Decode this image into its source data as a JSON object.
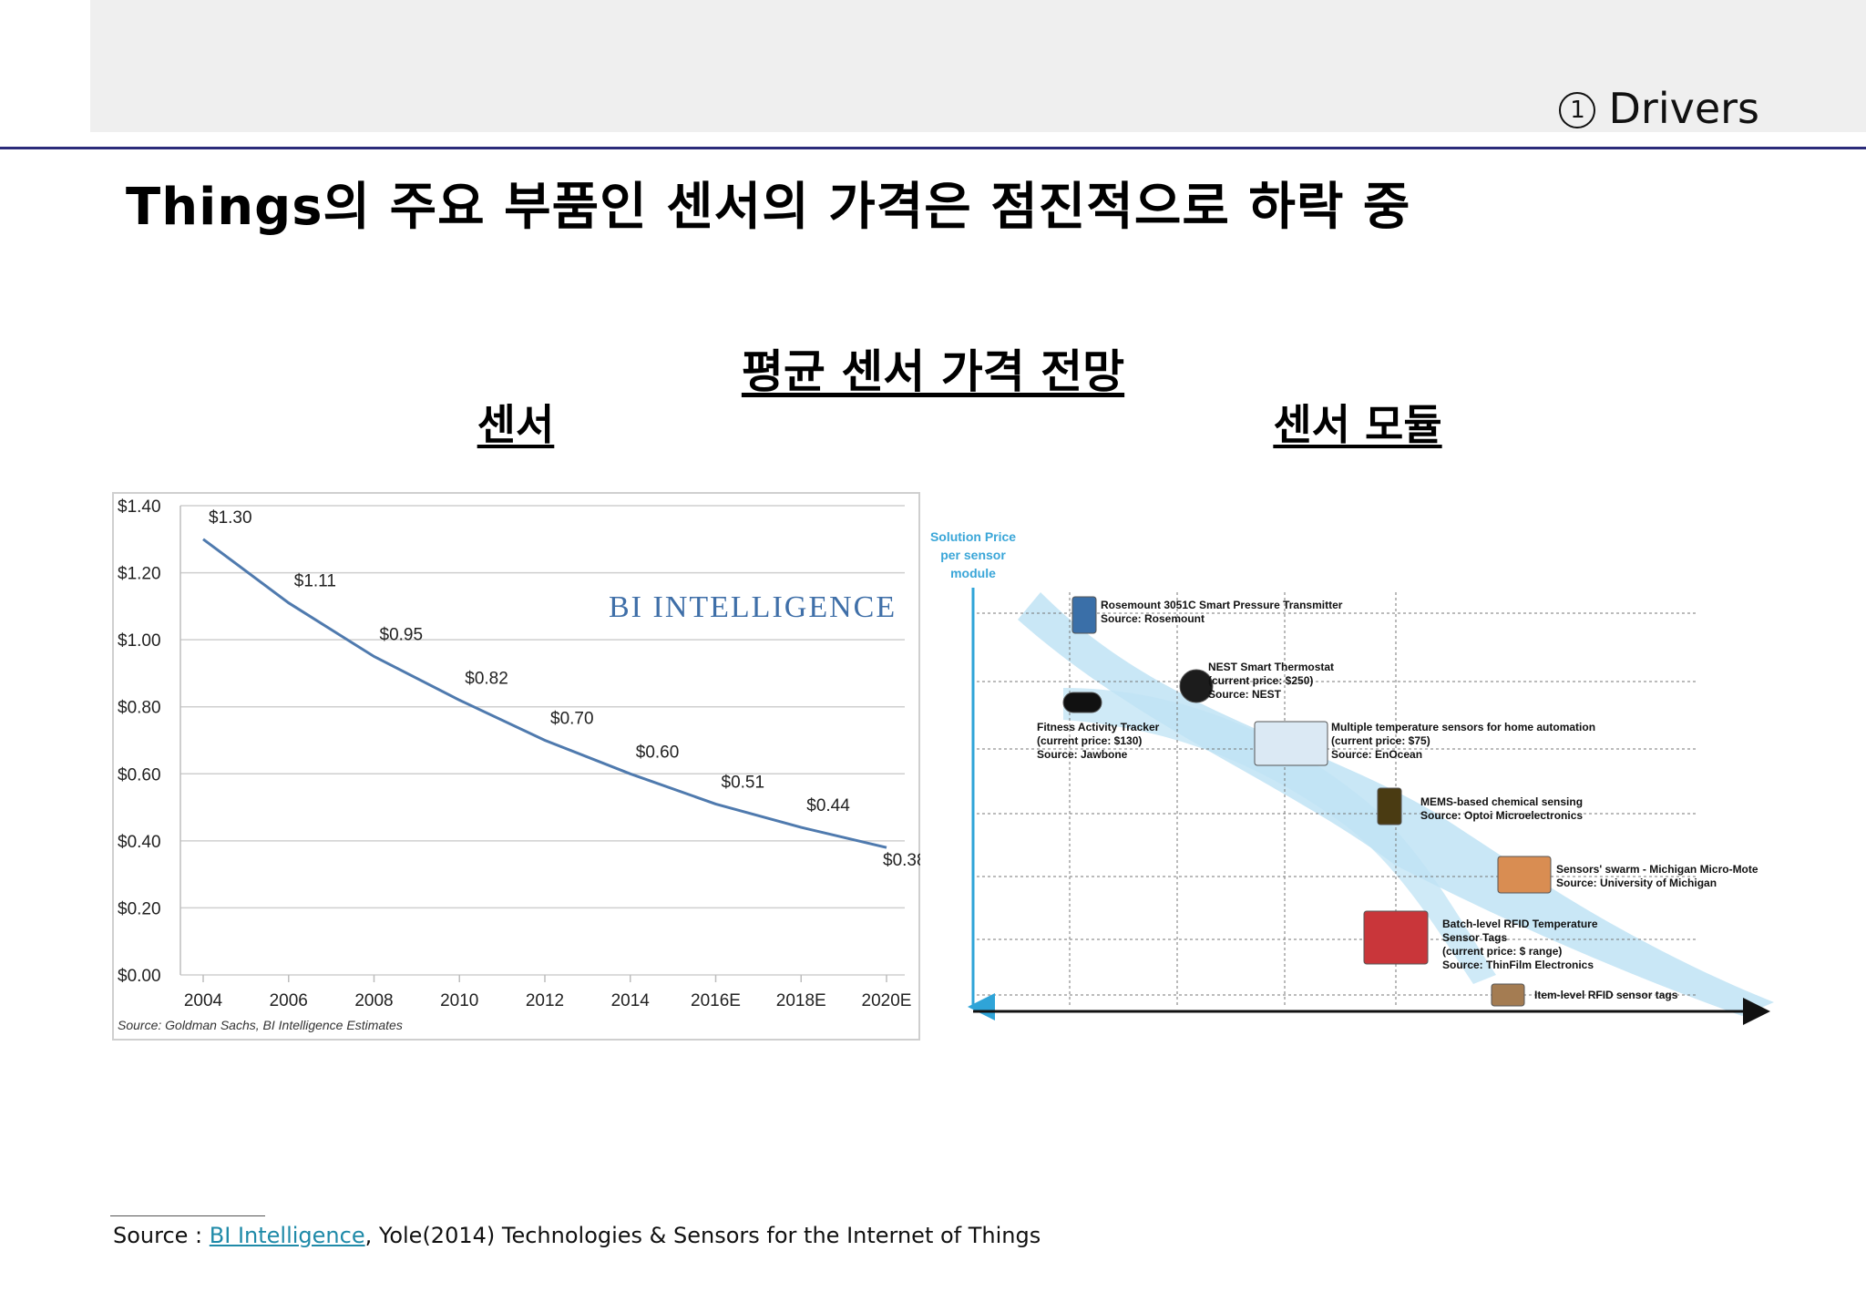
{
  "header": {
    "section_number": "①",
    "section_label": "Drivers",
    "headline": "Things의 주요 부품인 센서의 가격은 점진적으로 하락 중"
  },
  "figure": {
    "title": "평균 센서 가격 전망",
    "left_subtitle": "센서",
    "right_subtitle": "센서 모듈"
  },
  "chart_data": [
    {
      "type": "line",
      "title": "",
      "watermark": "BI INTELLIGENCE",
      "source_note": "Source: Goldman Sachs, BI Intelligence Estimates",
      "x": [
        "2004",
        "2006",
        "2008",
        "2010",
        "2012",
        "2014",
        "2016E",
        "2018E",
        "2020E"
      ],
      "series": [
        {
          "values": [
            1.3,
            1.11,
            0.95,
            0.82,
            0.7,
            0.6,
            0.51,
            0.44,
            0.38
          ],
          "data_labels": [
            "$1.30",
            "$1.11",
            "$0.95",
            "$0.82",
            "$0.70",
            "$0.60",
            "$0.51",
            "$0.44",
            "$0.38"
          ]
        }
      ],
      "y_ticks": [
        "$0.00",
        "$0.20",
        "$0.40",
        "$0.60",
        "$0.80",
        "$1.00",
        "$1.20",
        "$1.40"
      ],
      "ylim": [
        0,
        1.4
      ],
      "grid": true,
      "colors": {
        "line": "#4f7aae",
        "grid": "#cfcfcf",
        "watermark": "#3f6fa8"
      }
    },
    {
      "type": "diagram",
      "y_axis_label": "Solution Price per sensor module",
      "items": [
        {
          "name": "Rosemount 3051C Smart Pressure Transmitter",
          "source": "Source: Rosemount"
        },
        {
          "name": "NEST Smart Thermostat",
          "price": "(current price: $250)",
          "source": "Source: NEST"
        },
        {
          "name": "Fitness Activity Tracker",
          "price": "(current price: $130)",
          "source": "Source: Jawbone"
        },
        {
          "name": "Multiple temperature sensors for home automation",
          "price": "(current price: $75)",
          "source": "Source: EnOcean"
        },
        {
          "name": "MEMS-based chemical sensing",
          "source": "Source: Optoi Microelectronics"
        },
        {
          "name": "Sensors' swarm - Michigan Micro-Mote",
          "source": "Source: University of Michigan"
        },
        {
          "name": "Batch-level RFID Temperature",
          "name2": "Sensor Tags",
          "price": "(current price: $ range)",
          "source": "Source: ThinFilm Electronics"
        },
        {
          "name": "Item-level RFID sensor tags"
        }
      ],
      "colors": {
        "arrow": "#bfe3f4",
        "axis": "#111111",
        "price_axis": "#2fa4d8"
      }
    }
  ],
  "footer": {
    "prefix": "Source : ",
    "link": "BI Intelligence",
    "rest": ", Yole(2014) Technologies & Sensors for the Internet of Things"
  }
}
